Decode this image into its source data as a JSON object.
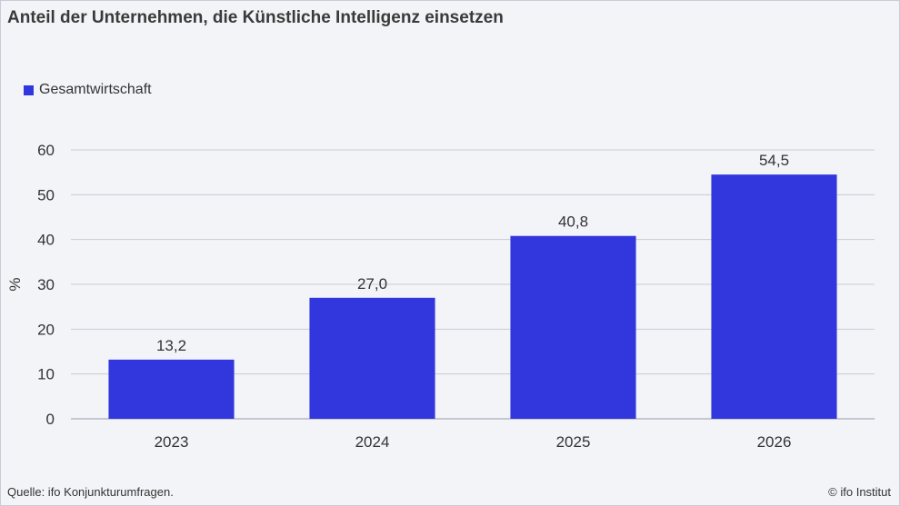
{
  "chart_data": {
    "type": "bar",
    "title": "Anteil der Unternehmen, die Künstliche Intelligenz einsetzen",
    "ylabel": "%",
    "xlabel": "",
    "categories": [
      "2023",
      "2024",
      "2025",
      "2026"
    ],
    "series": [
      {
        "name": "Gesamtwirtschaft",
        "values": [
          13.2,
          27.0,
          40.8,
          54.5
        ]
      }
    ],
    "data_labels": [
      "13,2",
      "27,0",
      "40,8",
      "54,5"
    ],
    "ylim": [
      0,
      60
    ],
    "yticks": [
      0,
      10,
      20,
      30,
      40,
      50,
      60
    ],
    "grid": true,
    "legend_position": "top-left",
    "bar_color": "#3237dd"
  },
  "footer": {
    "source": "Quelle: ifo Konjunkturumfragen.",
    "copyright": "© ifo Institut"
  }
}
